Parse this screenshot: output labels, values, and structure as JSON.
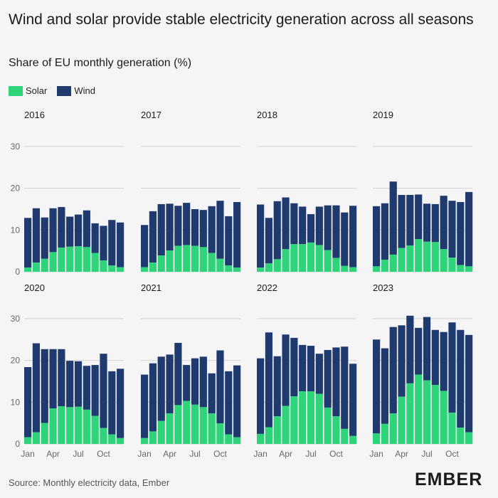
{
  "header": {
    "title": "Wind and solar provide stable electricity generation across all seasons",
    "subtitle": "Share of EU monthly generation (%)"
  },
  "legend": {
    "items": [
      {
        "label": "Solar",
        "color": "#2ed47a"
      },
      {
        "label": "Wind",
        "color": "#1f3a6f"
      }
    ]
  },
  "colors": {
    "solar": "#2ed47a",
    "wind": "#1f3a6f",
    "gridline": "#d4d4d4",
    "axis_text": "#666666"
  },
  "footer": {
    "source": "Source: Monthly electricity data, Ember",
    "logo": "EMBER"
  },
  "chart_data": {
    "type": "bar",
    "stacked": true,
    "title": "Wind and solar provide stable electricity generation across all seasons",
    "subtitle": "Share of EU monthly generation (%)",
    "ylabel": "Share of EU monthly generation (%)",
    "ylim": [
      0,
      30
    ],
    "yticks": [
      0,
      10,
      20,
      30
    ],
    "grid": true,
    "legend_position": "top-left",
    "months": [
      "Jan",
      "Feb",
      "Mar",
      "Apr",
      "May",
      "Jun",
      "Jul",
      "Aug",
      "Sep",
      "Oct",
      "Nov",
      "Dec"
    ],
    "xtick_labels": [
      "Jan",
      "Apr",
      "Jul",
      "Oct"
    ],
    "panels": [
      {
        "year": "2016",
        "solar": [
          1.0,
          2.2,
          3.1,
          4.7,
          5.8,
          6.0,
          6.1,
          5.9,
          4.5,
          2.7,
          1.5,
          1.1
        ],
        "wind": [
          11.9,
          13.0,
          9.9,
          10.5,
          9.7,
          7.2,
          7.6,
          8.8,
          7.1,
          8.3,
          10.9,
          10.7
        ]
      },
      {
        "year": "2017",
        "solar": [
          1.1,
          2.2,
          3.9,
          5.1,
          6.2,
          6.4,
          6.2,
          5.9,
          4.5,
          3.1,
          1.5,
          1.0
        ],
        "wind": [
          10.1,
          12.3,
          12.3,
          11.2,
          9.6,
          10.1,
          8.8,
          8.9,
          11.2,
          13.9,
          11.8,
          15.7
        ]
      },
      {
        "year": "2018",
        "solar": [
          1.0,
          2.0,
          3.0,
          5.4,
          6.6,
          6.6,
          7.0,
          6.4,
          5.2,
          3.3,
          1.4,
          1.1
        ],
        "wind": [
          15.1,
          10.9,
          13.9,
          12.4,
          9.8,
          9.0,
          6.8,
          9.2,
          10.7,
          12.6,
          12.8,
          14.7
        ]
      },
      {
        "year": "2019",
        "solar": [
          1.3,
          2.9,
          4.1,
          5.7,
          6.3,
          7.8,
          7.2,
          7.1,
          5.4,
          3.4,
          1.6,
          1.3
        ],
        "wind": [
          14.4,
          13.5,
          17.5,
          12.7,
          12.1,
          10.7,
          9.1,
          9.1,
          12.8,
          13.6,
          15.1,
          17.8
        ]
      },
      {
        "year": "2020",
        "solar": [
          1.6,
          2.8,
          5.0,
          8.5,
          9.0,
          8.8,
          8.9,
          8.2,
          6.7,
          3.8,
          2.3,
          1.4
        ],
        "wind": [
          16.8,
          21.3,
          17.7,
          14.2,
          13.7,
          11.1,
          10.9,
          10.5,
          12.2,
          17.8,
          15.1,
          16.6
        ]
      },
      {
        "year": "2021",
        "solar": [
          1.4,
          3.0,
          5.5,
          7.3,
          9.3,
          10.3,
          9.4,
          8.8,
          7.3,
          4.9,
          2.3,
          1.6
        ],
        "wind": [
          15.2,
          16.3,
          15.4,
          14.1,
          14.9,
          8.6,
          11.1,
          12.1,
          9.6,
          17.5,
          15.1,
          17.2
        ]
      },
      {
        "year": "2022",
        "solar": [
          2.4,
          4.0,
          6.6,
          9.1,
          11.4,
          12.6,
          12.6,
          12.0,
          8.7,
          6.6,
          3.6,
          1.9
        ],
        "wind": [
          18.1,
          22.7,
          14.4,
          17.1,
          14.0,
          11.1,
          10.9,
          9.6,
          13.8,
          16.5,
          19.7,
          17.3
        ]
      },
      {
        "year": "2023",
        "solar": [
          2.5,
          4.8,
          7.3,
          11.3,
          14.5,
          16.6,
          15.2,
          14.1,
          12.7,
          7.5,
          3.9,
          2.8
        ],
        "wind": [
          22.5,
          18.1,
          20.7,
          17.1,
          16.2,
          11.2,
          15.2,
          13.2,
          14.1,
          21.6,
          23.4,
          23.3
        ]
      }
    ]
  }
}
